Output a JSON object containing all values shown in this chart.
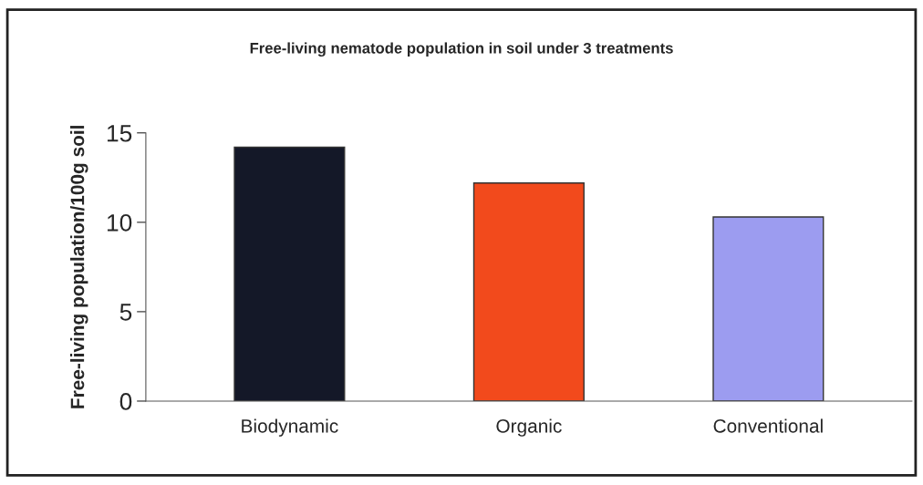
{
  "chart_data": {
    "type": "bar",
    "title": "Free-living nematode population in soil under 3 treatments",
    "ylabel": "Free-living population/100g soil",
    "categories": [
      "Biodynamic",
      "Organic",
      "Conventional"
    ],
    "series": [
      {
        "colors": [
          "#141828",
          "#f24a1c",
          "#9c9cf0"
        ],
        "values": [
          14.2,
          12.2,
          10.3
        ]
      }
    ],
    "ylim": [
      0,
      15
    ],
    "yticks": [
      0,
      5,
      10,
      15
    ],
    "grid": false,
    "legend": false
  }
}
